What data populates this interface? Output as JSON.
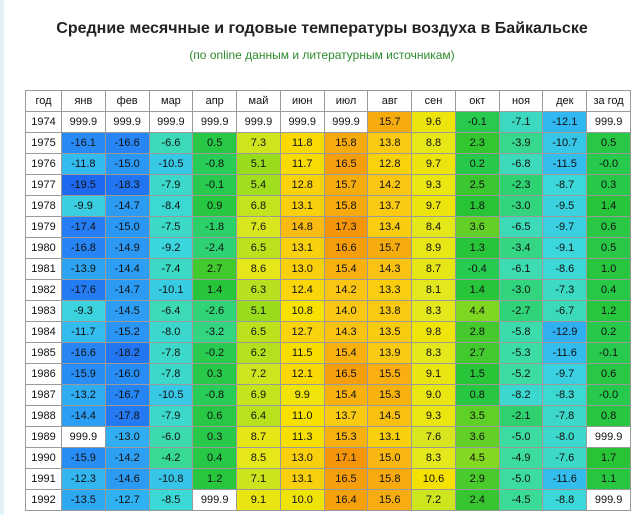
{
  "title": "Средние месячные и годовые температуры воздуха в Байкальске",
  "subtitle": "(по online данным и литературным источникам)",
  "table": {
    "header": [
      "год",
      "янв",
      "фев",
      "мар",
      "апр",
      "май",
      "июн",
      "июл",
      "авг",
      "сен",
      "окт",
      "ноя",
      "дек",
      "за год"
    ],
    "rows": [
      [
        "1974",
        "999.9",
        "999.9",
        "999.9",
        "999.9",
        "999.9",
        "999.9",
        "999.9",
        "15.7",
        "9.6",
        "-0.1",
        "-7.1",
        "-12.1",
        "999.9"
      ],
      [
        "1975",
        "-16.1",
        "-16.6",
        "-6.6",
        "0.5",
        "7.3",
        "11.8",
        "15.8",
        "13.8",
        "8.8",
        "2.3",
        "-3.9",
        "-10.7",
        "0.5"
      ],
      [
        "1976",
        "-11.8",
        "-15.0",
        "-10.5",
        "-0.8",
        "5.1",
        "11.7",
        "16.5",
        "12.8",
        "9.7",
        "0.2",
        "-6.8",
        "-11.5",
        "-0.0"
      ],
      [
        "1977",
        "-19.5",
        "-18.3",
        "-7.9",
        "-0.1",
        "5.4",
        "12.8",
        "15.7",
        "14.2",
        "9.3",
        "2.5",
        "-2.3",
        "-8.7",
        "0.3"
      ],
      [
        "1978",
        "-9.9",
        "-14.7",
        "-8.4",
        "0.9",
        "6.8",
        "13.1",
        "15.8",
        "13.7",
        "9.7",
        "1.8",
        "-3.0",
        "-9.5",
        "1.4"
      ],
      [
        "1979",
        "-17.4",
        "-15.0",
        "-7.5",
        "-1.8",
        "7.6",
        "14.8",
        "17.3",
        "13.4",
        "8.4",
        "3.6",
        "-6.5",
        "-9.7",
        "0.6"
      ],
      [
        "1980",
        "-16.8",
        "-14.9",
        "-9.2",
        "-2.4",
        "6.5",
        "13.1",
        "16.6",
        "15.7",
        "8.9",
        "1.3",
        "-3.4",
        "-9.1",
        "0.5"
      ],
      [
        "1981",
        "-13.9",
        "-14.4",
        "-7.4",
        "2.7",
        "8.6",
        "13.0",
        "15.4",
        "14.3",
        "8.7",
        "-0.4",
        "-6.1",
        "-8.6",
        "1.0"
      ],
      [
        "1982",
        "-17.6",
        "-14.7",
        "-10.1",
        "1.4",
        "6.3",
        "12.4",
        "14.2",
        "13.3",
        "8.1",
        "1.4",
        "-3.0",
        "-7.3",
        "0.4"
      ],
      [
        "1983",
        "-9.3",
        "-14.5",
        "-6.4",
        "-2.6",
        "5.1",
        "10.8",
        "14.0",
        "13.8",
        "8.3",
        "4.4",
        "-2.7",
        "-6.7",
        "1.2"
      ],
      [
        "1984",
        "-11.7",
        "-15.2",
        "-8.0",
        "-3.2",
        "6.5",
        "12.7",
        "14.3",
        "13.5",
        "9.8",
        "2.8",
        "-5.8",
        "-12.9",
        "0.2"
      ],
      [
        "1985",
        "-16.6",
        "-18.2",
        "-7.8",
        "-0.2",
        "6.2",
        "11.5",
        "15.4",
        "13.9",
        "8.3",
        "2.7",
        "-5.3",
        "-11.6",
        "-0.1"
      ],
      [
        "1986",
        "-15.9",
        "-16.0",
        "-7.8",
        "0.3",
        "7.2",
        "12.1",
        "16.5",
        "15.5",
        "9.1",
        "1.5",
        "-5.2",
        "-9.7",
        "0.6"
      ],
      [
        "1987",
        "-13.2",
        "-16.7",
        "-10.5",
        "-0.8",
        "6.9",
        "9.9",
        "15.4",
        "15.3",
        "9.0",
        "0.8",
        "-8.2",
        "-8.3",
        "-0.0"
      ],
      [
        "1988",
        "-14.4",
        "-17.8",
        "-7.9",
        "0.6",
        "6.4",
        "11.0",
        "13.7",
        "14.5",
        "9.3",
        "3.5",
        "-2.1",
        "-7.8",
        "0.8"
      ],
      [
        "1989",
        "999.9",
        "-13.0",
        "-6.0",
        "0.3",
        "8.7",
        "11.3",
        "15.3",
        "13.1",
        "7.6",
        "3.6",
        "-5.0",
        "-8.0",
        "999.9"
      ],
      [
        "1990",
        "-15.9",
        "-14.2",
        "-4.2",
        "0.4",
        "8.5",
        "13.0",
        "17.1",
        "15.0",
        "8.3",
        "4.5",
        "-4.9",
        "-7.6",
        "1.7"
      ],
      [
        "1991",
        "-12.3",
        "-14.6",
        "-10.8",
        "1.2",
        "7.1",
        "13.1",
        "16.5",
        "15.8",
        "10.6",
        "2.9",
        "-5.0",
        "-11.6",
        "1.1"
      ],
      [
        "1992",
        "-13.5",
        "-12.7",
        "-8.5",
        "999.9",
        "9.1",
        "10.0",
        "16.4",
        "15.6",
        "7.2",
        "2.4",
        "-4.5",
        "-8.8",
        "999.9"
      ]
    ]
  }
}
